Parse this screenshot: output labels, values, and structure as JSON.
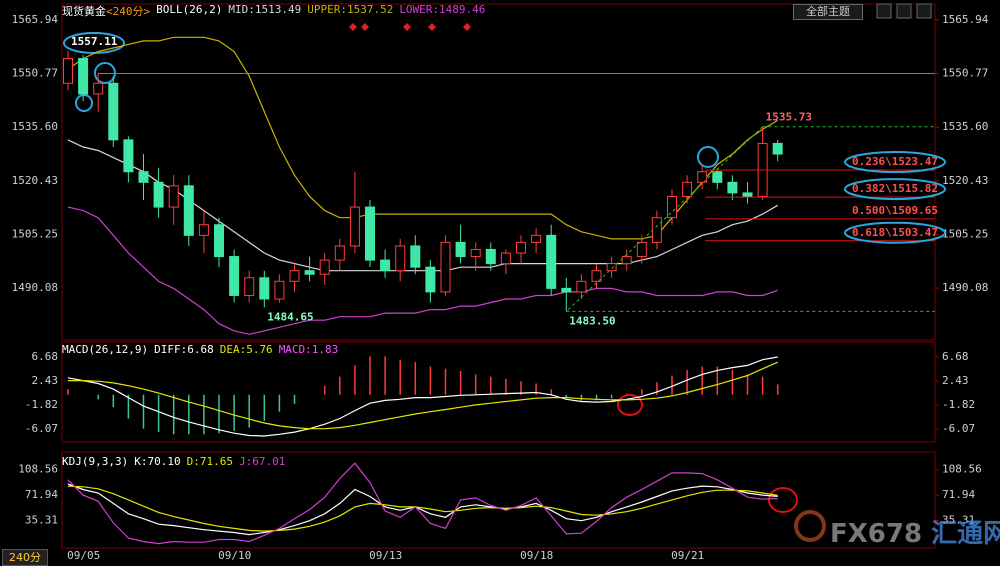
{
  "ui": {
    "button": "全部主题",
    "period_tab": "240分",
    "watermark_brand": "FX678",
    "watermark_cn": "汇通网"
  },
  "chart_data": [
    {
      "type": "candlestick",
      "symbol": "现货黄金",
      "period": "<240分>",
      "indicator": "BOLL(26,2)",
      "categories": [
        null,
        "09/05",
        null,
        null,
        null,
        null,
        null,
        null,
        null,
        null,
        null,
        "09/10",
        null,
        null,
        null,
        null,
        null,
        null,
        null,
        null,
        null,
        "09/13",
        null,
        null,
        null,
        null,
        null,
        null,
        null,
        null,
        null,
        "09/18",
        null,
        null,
        null,
        null,
        null,
        null,
        null,
        null,
        null,
        "09/21",
        null,
        null,
        null,
        null,
        null,
        null
      ],
      "open": [
        1548,
        1555,
        1545,
        1548,
        1532,
        1523,
        1520,
        1513,
        1519,
        1505,
        1508,
        1499,
        1488,
        1493,
        1487,
        1492,
        1495,
        1494,
        1498,
        1502,
        1513,
        1498,
        1495,
        1502,
        1496,
        1489,
        1503,
        1499,
        1501,
        1497,
        1500,
        1503,
        1505,
        1490,
        1489,
        1492,
        1495,
        1497,
        1499,
        1503,
        1510,
        1516,
        1520,
        1523,
        1520,
        1517,
        1516,
        1531
      ],
      "high": [
        1557.11,
        1556,
        1551,
        1550,
        1533,
        1528,
        1524,
        1522,
        1522,
        1512,
        1510,
        1501,
        1495,
        1495,
        1494,
        1497,
        1499,
        1500,
        1504,
        1523,
        1515,
        1501,
        1504,
        1505,
        1498,
        1505,
        1508,
        1503,
        1503,
        1501,
        1505,
        1507,
        1508,
        1493,
        1494,
        1497,
        1499,
        1501,
        1505,
        1512,
        1518,
        1522,
        1525,
        1524,
        1522,
        1520,
        1535.73,
        1532
      ],
      "low": [
        1546,
        1543,
        1540,
        1530,
        1520,
        1515,
        1510,
        1508,
        1502,
        1500,
        1496,
        1486,
        1486,
        1484.65,
        1486,
        1489,
        1492,
        1491,
        1495,
        1500,
        1496,
        1493,
        1492,
        1494,
        1486,
        1488,
        1497,
        1495,
        1495,
        1494,
        1497,
        1500,
        1488,
        1483.5,
        1487,
        1490,
        1493,
        1495,
        1497,
        1501,
        1508,
        1514,
        1518,
        1518,
        1515,
        1514,
        1515,
        1526
      ],
      "close": [
        1555,
        1545,
        1548,
        1532,
        1523,
        1520,
        1513,
        1519,
        1505,
        1508,
        1499,
        1488,
        1493,
        1487,
        1492,
        1495,
        1494,
        1498,
        1502,
        1513,
        1498,
        1495,
        1502,
        1496,
        1489,
        1503,
        1499,
        1501,
        1497,
        1500,
        1503,
        1505,
        1490,
        1489,
        1492,
        1495,
        1497,
        1499,
        1503,
        1510,
        1516,
        1520,
        1523,
        1520,
        1517,
        1516,
        1531,
        1528
      ],
      "up_color": "#ff3c3c",
      "down_color": "#40e8a8",
      "series": [
        {
          "name": "MID:1513.49",
          "color": "#d8d8d8",
          "values": [
            1532,
            1530,
            1529,
            1527,
            1525,
            1523,
            1520,
            1518,
            1515,
            1512,
            1509,
            1506,
            1503,
            1500,
            1498,
            1497,
            1496,
            1495,
            1495,
            1495,
            1495,
            1495,
            1495,
            1495,
            1495,
            1495,
            1496,
            1496,
            1496,
            1497,
            1497,
            1497,
            1497,
            1497,
            1497,
            1497,
            1497,
            1497,
            1498,
            1499,
            1501,
            1503,
            1505,
            1506,
            1508,
            1509,
            1511,
            1513.49
          ]
        },
        {
          "name": "UPPER:1537.52",
          "color": "#c8b400",
          "values": [
            1552,
            1555,
            1557,
            1558,
            1559,
            1560,
            1560,
            1561,
            1561,
            1561,
            1560,
            1557,
            1550,
            1540,
            1530,
            1522,
            1516,
            1512,
            1510,
            1510,
            1511,
            1511,
            1511,
            1511,
            1511,
            1511,
            1511,
            1511,
            1511,
            1511,
            1511,
            1511,
            1511,
            1508,
            1506,
            1505,
            1504,
            1504,
            1504,
            1505,
            1510,
            1515,
            1520,
            1525,
            1528,
            1532,
            1535,
            1537.52
          ]
        },
        {
          "name": "LOWER:1489.46",
          "color": "#d040d0",
          "values": [
            1513,
            1512,
            1510,
            1505,
            1500,
            1496,
            1492,
            1490,
            1487,
            1484,
            1480,
            1478,
            1477,
            1478,
            1479,
            1480,
            1481,
            1481,
            1482,
            1482,
            1482,
            1483,
            1483,
            1483,
            1484,
            1484,
            1485,
            1485,
            1486,
            1487,
            1487,
            1488,
            1488,
            1489,
            1489,
            1490,
            1490,
            1489,
            1489,
            1488,
            1488,
            1488,
            1488,
            1489,
            1489,
            1488,
            1488,
            1489.46
          ]
        }
      ],
      "ylim": [
        1475.4,
        1569.3
      ],
      "yticks": [
        1565.94,
        1550.77,
        {
          "value": 1535.6,
          "label": "1535.60"
        },
        1520.43,
        1505.25,
        1490.08
      ],
      "annotations": [
        {
          "value": 1557.11,
          "color": "#ffffff",
          "guide": false
        },
        {
          "value": 1484.65,
          "color": "#80ffc0",
          "guide": false
        },
        {
          "value": 1535.73,
          "color": "#ff6060",
          "guide": true
        },
        {
          "value": 1483.5,
          "label": "1483.50",
          "color": "#80ffc0",
          "guide": true
        }
      ],
      "fib_levels": [
        {
          "value": 1523.47,
          "label": "0.236\\1523.47",
          "circled": true
        },
        {
          "value": 1515.82,
          "label": "0.382\\1515.82",
          "circled": true
        },
        {
          "value": 1509.65,
          "label": "0.500\\1509.65",
          "circled": false
        },
        {
          "value": 1503.47,
          "label": "0.618\\1503.47",
          "circled": true
        }
      ],
      "grid": false
    },
    {
      "type": "macd",
      "title": "MACD(26,12,9)",
      "series": [
        {
          "name": "DIFF:6.68",
          "color": "#ffffff",
          "values": [
            3,
            2.5,
            2,
            1,
            -0.5,
            -2,
            -3,
            -4,
            -4.8,
            -5.5,
            -6.2,
            -6.8,
            -7.2,
            -7.3,
            -7,
            -6.6,
            -6,
            -5.2,
            -4.2,
            -2.8,
            -1.5,
            -1,
            -0.8,
            -0.5,
            -0.5,
            -0.3,
            -0.1,
            0,
            0.1,
            0.2,
            0.3,
            0.4,
            0,
            -0.8,
            -1.2,
            -1.3,
            -1.2,
            -0.8,
            -0.3,
            0.5,
            1.5,
            2.6,
            3.6,
            4.3,
            4.8,
            5.2,
            6.2,
            6.68
          ]
        },
        {
          "name": "DEA:5.76",
          "color": "#e6e600",
          "values": [
            2.5,
            2.5,
            2.4,
            2.1,
            1.6,
            1,
            0.3,
            -0.5,
            -1.3,
            -2,
            -2.8,
            -3.6,
            -4.3,
            -5,
            -5.5,
            -5.8,
            -6,
            -6,
            -5.8,
            -5.4,
            -4.9,
            -4.4,
            -3.9,
            -3.4,
            -3,
            -2.6,
            -2.2,
            -1.8,
            -1.5,
            -1.2,
            -0.9,
            -0.6,
            -0.5,
            -0.5,
            -0.7,
            -0.8,
            -0.9,
            -0.9,
            -0.8,
            -0.6,
            -0.2,
            0.4,
            1.1,
            1.8,
            2.6,
            3.4,
            4.6,
            5.76
          ]
        },
        {
          "name": "MACD:1.83",
          "color": "#ff3c3c",
          "negative_color": "#3cc88c",
          "label_color": "#ff50ff",
          "values": [
            1,
            0,
            -0.8,
            -2.2,
            -4.2,
            -6,
            -6.6,
            -7,
            -7,
            -7,
            -6.8,
            -6.4,
            -5.8,
            -4.6,
            -3,
            -1.6,
            0,
            1.6,
            3.2,
            5.2,
            6.8,
            6.8,
            6.2,
            5.8,
            5,
            4.6,
            4.2,
            3.6,
            3.2,
            2.8,
            2.4,
            2,
            1,
            -0.6,
            -1,
            -1,
            -0.6,
            0.2,
            1,
            2.2,
            3.4,
            4.4,
            5,
            5,
            4.4,
            3.6,
            3.2,
            1.83
          ]
        }
      ],
      "ylim": [
        -8,
        8.8
      ],
      "yticks": [
        6.68,
        2.43,
        -1.82,
        -6.07
      ],
      "grid": false
    },
    {
      "type": "kdj",
      "title": "KDJ(9,3,3)",
      "series": [
        {
          "name": "K:70.10",
          "color": "#ffffff",
          "values": [
            88,
            80,
            75,
            60,
            45,
            38,
            30,
            28,
            25,
            22,
            20,
            18,
            15,
            18,
            22,
            28,
            35,
            45,
            60,
            80,
            70,
            55,
            50,
            55,
            45,
            40,
            55,
            58,
            55,
            52,
            55,
            60,
            50,
            38,
            35,
            40,
            48,
            55,
            62,
            70,
            78,
            82,
            85,
            84,
            80,
            75,
            72,
            70.1
          ]
        },
        {
          "name": "D:71.65",
          "color": "#e6e600",
          "values": [
            85,
            84,
            81,
            74,
            65,
            56,
            47,
            41,
            36,
            31,
            27,
            24,
            21,
            20,
            21,
            23,
            27,
            33,
            42,
            55,
            60,
            58,
            55,
            55,
            52,
            48,
            50,
            53,
            54,
            53,
            54,
            56,
            54,
            49,
            44,
            43,
            45,
            48,
            53,
            59,
            65,
            71,
            76,
            79,
            79,
            78,
            75,
            71.65
          ]
        },
        {
          "name": "J:67.01",
          "color": "#d040d0",
          "values": [
            94,
            72,
            63,
            32,
            10,
            5,
            2,
            5,
            4,
            4,
            8,
            8,
            5,
            14,
            24,
            38,
            51,
            69,
            96,
            118,
            90,
            49,
            40,
            55,
            31,
            24,
            65,
            68,
            57,
            50,
            57,
            68,
            42,
            16,
            17,
            34,
            54,
            69,
            80,
            92,
            104,
            104,
            103,
            94,
            82,
            69,
            66,
            67.01
          ]
        }
      ],
      "ylim": [
        0,
        125.5
      ],
      "yticks": [
        108.56,
        71.94,
        35.31
      ],
      "grid": false
    }
  ]
}
